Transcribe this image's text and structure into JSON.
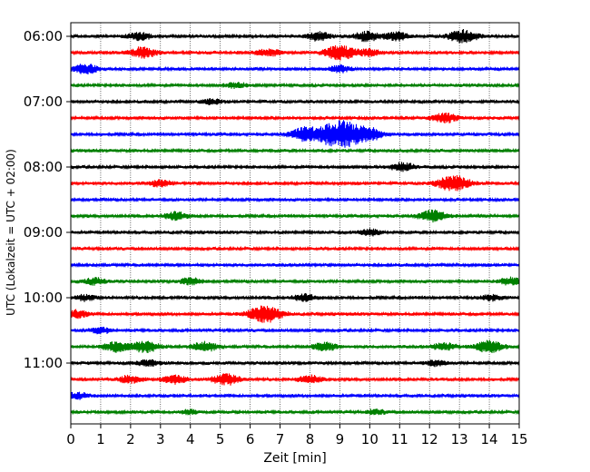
{
  "chart_data": {
    "type": "line",
    "subtype": "seismic-helicorder",
    "xlabel": "Zeit  [min]",
    "ylabel": "UTC (Lokalzeit = UTC + 02:00)",
    "xlim": [
      0,
      15
    ],
    "x_ticks": [
      0,
      1,
      2,
      3,
      4,
      5,
      6,
      7,
      8,
      9,
      10,
      11,
      12,
      13,
      14,
      15
    ],
    "grid": "vertical-dotted",
    "trace_interval_min": 15,
    "color_cycle": [
      "#000000",
      "#ff0000",
      "#0000ff",
      "#008000"
    ],
    "y_tick_labels": [
      "06:00",
      "07:00",
      "08:00",
      "09:00",
      "10:00",
      "11:00"
    ],
    "traces": [
      {
        "start": "06:00",
        "color": "#000000",
        "events": [
          [
            2.3,
            0.35
          ],
          [
            8.3,
            0.4
          ],
          [
            9.9,
            0.45
          ],
          [
            10.9,
            0.4
          ],
          [
            13.1,
            0.6
          ]
        ]
      },
      {
        "start": "06:15",
        "color": "#ff0000",
        "events": [
          [
            2.4,
            0.5
          ],
          [
            6.6,
            0.35
          ],
          [
            9.0,
            0.7
          ],
          [
            10.0,
            0.3
          ]
        ]
      },
      {
        "start": "06:30",
        "color": "#0000ff",
        "events": [
          [
            0.5,
            0.45
          ],
          [
            9.0,
            0.3
          ]
        ]
      },
      {
        "start": "06:45",
        "color": "#008000",
        "events": [
          [
            5.5,
            0.25
          ]
        ]
      },
      {
        "start": "07:00",
        "color": "#000000",
        "events": [
          [
            4.7,
            0.25
          ]
        ]
      },
      {
        "start": "07:15",
        "color": "#ff0000",
        "events": [
          [
            12.5,
            0.45
          ]
        ]
      },
      {
        "start": "07:30",
        "color": "#0000ff",
        "events": [
          [
            7.8,
            0.6
          ],
          [
            9.0,
            1.3
          ],
          [
            10.0,
            0.55
          ]
        ]
      },
      {
        "start": "07:45",
        "color": "#008000",
        "events": []
      },
      {
        "start": "08:00",
        "color": "#000000",
        "events": [
          [
            11.1,
            0.4
          ]
        ]
      },
      {
        "start": "08:15",
        "color": "#ff0000",
        "events": [
          [
            3.0,
            0.3
          ],
          [
            12.8,
            0.75
          ]
        ]
      },
      {
        "start": "08:30",
        "color": "#0000ff",
        "events": []
      },
      {
        "start": "08:45",
        "color": "#008000",
        "events": [
          [
            3.5,
            0.35
          ],
          [
            12.1,
            0.55
          ]
        ]
      },
      {
        "start": "09:00",
        "color": "#000000",
        "events": [
          [
            10.0,
            0.3
          ]
        ]
      },
      {
        "start": "09:15",
        "color": "#ff0000",
        "events": []
      },
      {
        "start": "09:30",
        "color": "#0000ff",
        "events": []
      },
      {
        "start": "09:45",
        "color": "#008000",
        "events": [
          [
            0.8,
            0.3
          ],
          [
            4.0,
            0.3
          ],
          [
            14.7,
            0.35
          ]
        ]
      },
      {
        "start": "10:00",
        "color": "#000000",
        "events": [
          [
            0.5,
            0.25
          ],
          [
            7.8,
            0.3
          ],
          [
            14.1,
            0.25
          ]
        ]
      },
      {
        "start": "10:15",
        "color": "#ff0000",
        "events": [
          [
            0.2,
            0.35
          ],
          [
            6.5,
            0.8
          ]
        ]
      },
      {
        "start": "10:30",
        "color": "#0000ff",
        "events": [
          [
            1.0,
            0.25
          ]
        ]
      },
      {
        "start": "10:45",
        "color": "#008000",
        "events": [
          [
            1.5,
            0.45
          ],
          [
            2.5,
            0.55
          ],
          [
            4.5,
            0.45
          ],
          [
            8.5,
            0.4
          ],
          [
            12.5,
            0.35
          ],
          [
            14.0,
            0.55
          ]
        ]
      },
      {
        "start": "11:00",
        "color": "#000000",
        "events": [
          [
            2.6,
            0.3
          ],
          [
            12.2,
            0.25
          ]
        ]
      },
      {
        "start": "11:15",
        "color": "#ff0000",
        "events": [
          [
            2.0,
            0.35
          ],
          [
            3.5,
            0.4
          ],
          [
            5.2,
            0.5
          ],
          [
            8.0,
            0.35
          ]
        ]
      },
      {
        "start": "11:30",
        "color": "#0000ff",
        "events": [
          [
            0.2,
            0.3
          ]
        ]
      },
      {
        "start": "11:45",
        "color": "#008000",
        "events": [
          [
            4.0,
            0.2
          ],
          [
            10.2,
            0.2
          ]
        ]
      }
    ]
  }
}
